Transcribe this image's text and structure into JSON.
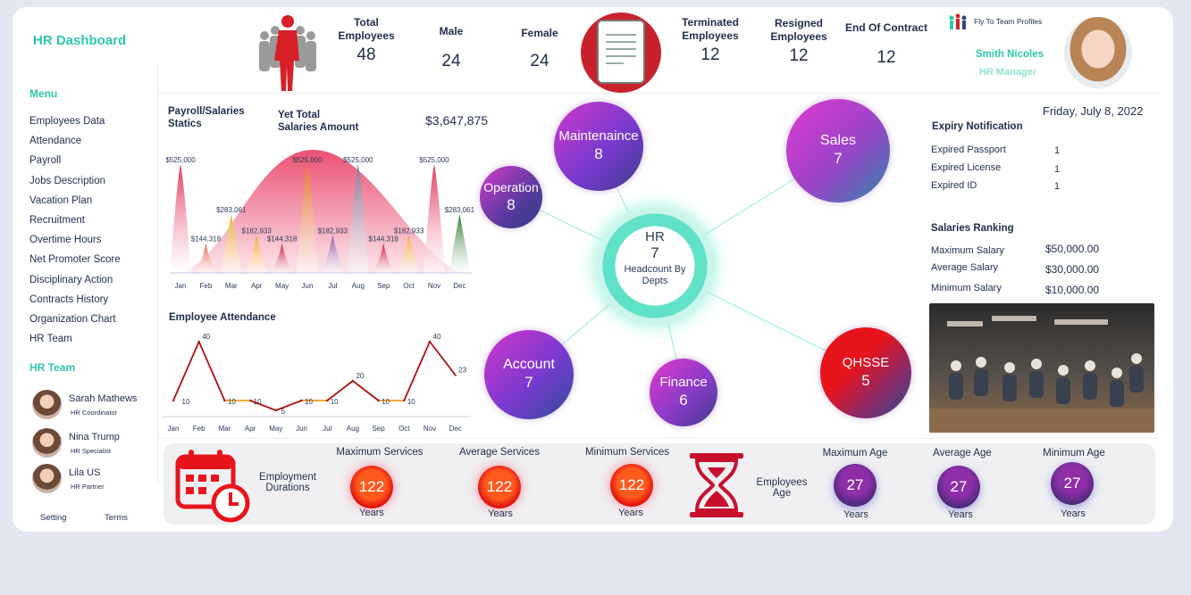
{
  "app": {
    "title": "HR Dashboard"
  },
  "sidebar": {
    "menu_title": "Menu",
    "items": [
      {
        "label": "Employees Data"
      },
      {
        "label": "Attendance"
      },
      {
        "label": "Payroll"
      },
      {
        "label": "Jobs Description"
      },
      {
        "label": "Vacation Plan"
      },
      {
        "label": "Recruitment"
      },
      {
        "label": "Overtime Hours"
      },
      {
        "label": "Net Promoter Score"
      },
      {
        "label": "Disciplinary Action"
      },
      {
        "label": "Contracts History"
      },
      {
        "label": "Organization Chart"
      },
      {
        "label": "HR Team"
      }
    ],
    "team_title": "HR Team",
    "team": [
      {
        "name": "Sarah Mathews",
        "role": "HR Coordinator"
      },
      {
        "name": "Nina Trump",
        "role": "HR Specialist"
      },
      {
        "name": "Lila US",
        "role": "HR Partner"
      }
    ],
    "setting": "Setting",
    "terms": "Terms"
  },
  "header": {
    "total_employees": {
      "label1": "Total",
      "label2": "Employees",
      "value": "48"
    },
    "male": {
      "label": "Male",
      "value": "24"
    },
    "female": {
      "label": "Female",
      "value": "24"
    },
    "terminated": {
      "label1": "Terminated",
      "label2": "Employees",
      "value": "12"
    },
    "resigned": {
      "label1": "Resigned",
      "label2": "Employees",
      "value": "12"
    },
    "end_contract": {
      "label": "End Of Contract",
      "value": "12"
    },
    "profile_link": "Fly To Team Profiles",
    "user_name": "Smith Nicoles",
    "user_role": "HR Manager"
  },
  "payroll": {
    "title1": "Payroll/Salaries",
    "title2": "Statics",
    "total_label1": "Yet Total",
    "total_label2": "Salaries Amount",
    "total_value": "$3,647,875"
  },
  "attendance": {
    "title": "Employee Attendance"
  },
  "chart_data": [
    {
      "type": "area",
      "categories": [
        "Jan",
        "Feb",
        "Mar",
        "Apr",
        "May",
        "Jun",
        "Jul",
        "Aug",
        "Sep",
        "Oct",
        "Nov",
        "Dec"
      ],
      "values": [
        525000,
        144318,
        283061,
        182933,
        144318,
        525000,
        182933,
        525000,
        144318,
        182933,
        525000,
        283061
      ],
      "labels": [
        "$525,000",
        "$144,318",
        "$283,061",
        "$182,933",
        "$144,318",
        "$525,000",
        "$182,933",
        "$525,000",
        "$144,318",
        "$182,933",
        "$525,000",
        "$283,061"
      ],
      "colors": [
        "#e0355c",
        "#e85a3a",
        "#e8b233",
        "#f5a623",
        "#c8102e",
        "#e87a2a",
        "#8a5aa8",
        "#8a7a9a",
        "#c8102e",
        "#f0b030",
        "#e0355c",
        "#2e7d32"
      ]
    },
    {
      "type": "line",
      "categories": [
        "Jan",
        "Feb",
        "Mar",
        "Apr",
        "May",
        "Jun",
        "Jul",
        "Aug",
        "Sep",
        "Oct",
        "Nov",
        "Dec"
      ],
      "values": [
        10,
        40,
        10,
        10,
        5,
        10,
        10,
        20,
        10,
        10,
        40,
        23
      ]
    }
  ],
  "departments": {
    "hub": {
      "name": "HR",
      "value": "7",
      "sub1": "Headcount By",
      "sub2": "Depts"
    },
    "items": [
      {
        "name": "Maintenaince",
        "value": "8"
      },
      {
        "name": "Operation",
        "value": "8"
      },
      {
        "name": "Sales",
        "value": "7"
      },
      {
        "name": "Account",
        "value": "7"
      },
      {
        "name": "Finance",
        "value": "6"
      },
      {
        "name": "QHSSE",
        "value": "5"
      }
    ]
  },
  "right": {
    "date": "Friday, July 8, 2022",
    "expiry_title": "Expiry Notification",
    "expiry": [
      {
        "label": "Expired Passport",
        "value": "1"
      },
      {
        "label": "Expired License",
        "value": "1"
      },
      {
        "label": "Expired ID",
        "value": "1"
      }
    ],
    "ranking_title": "Salaries Ranking",
    "ranking": [
      {
        "label": "Maximum Salary",
        "value": "$50,000.00"
      },
      {
        "label": "Average Salary",
        "value": "$30,000.00"
      },
      {
        "label": "Minimum Salary",
        "value": "$10,000.00"
      }
    ]
  },
  "bottom": {
    "durations_label1": "Employment",
    "durations_label2": "Durations",
    "services": [
      {
        "label": "Maximum Services",
        "value": "122",
        "unit": "Years"
      },
      {
        "label": "Average Services",
        "value": "122",
        "unit": "Years"
      },
      {
        "label": "Minimum Services",
        "value": "122",
        "unit": "Years"
      }
    ],
    "age_label1": "Employees",
    "age_label2": "Age",
    "ages": [
      {
        "label": "Maximum Age",
        "value": "27",
        "unit": "Years"
      },
      {
        "label": "Average Age",
        "value": "27",
        "unit": "Years"
      },
      {
        "label": "Minimum Age",
        "value": "27",
        "unit": "Years"
      }
    ]
  }
}
